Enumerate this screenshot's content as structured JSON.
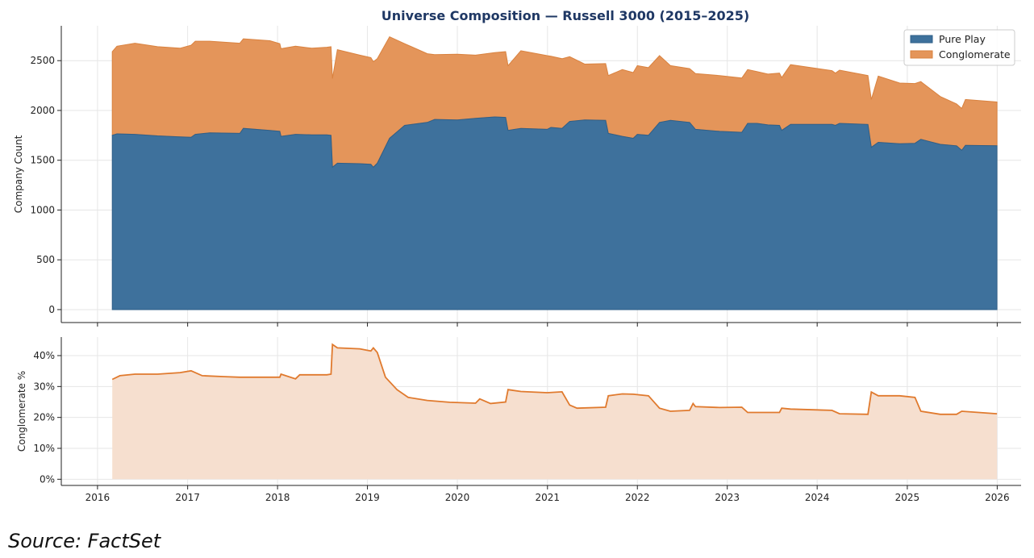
{
  "chart_data": [
    {
      "type": "area",
      "stacked": true,
      "title": "Universe Composition — Russell 3000  (2015–2025)",
      "xlabel": "",
      "ylabel": "Company Count",
      "ylim": [
        -130,
        2850
      ],
      "yticks": [
        0,
        500,
        1000,
        1500,
        2000,
        2500
      ],
      "grid": true,
      "legend": "top-right",
      "series": [
        {
          "name": "Pure Play",
          "color": "#3e719c",
          "points": [
            [
              "2016-03-01",
              1750
            ],
            [
              "2016-03-20",
              1765
            ],
            [
              "2016-06-01",
              1760
            ],
            [
              "2016-09-01",
              1745
            ],
            [
              "2016-12-01",
              1735
            ],
            [
              "2017-01-15",
              1730
            ],
            [
              "2017-02-01",
              1760
            ],
            [
              "2017-04-01",
              1775
            ],
            [
              "2017-08-01",
              1770
            ],
            [
              "2017-08-15",
              1820
            ],
            [
              "2017-12-01",
              1800
            ],
            [
              "2018-01-10",
              1790
            ],
            [
              "2018-01-15",
              1740
            ],
            [
              "2018-03-15",
              1760
            ],
            [
              "2018-05-20",
              1755
            ],
            [
              "2018-07-20",
              1755
            ],
            [
              "2018-08-06",
              1750
            ],
            [
              "2018-08-12",
              1430
            ],
            [
              "2018-09-01",
              1470
            ],
            [
              "2018-12-01",
              1465
            ],
            [
              "2019-01-15",
              1460
            ],
            [
              "2019-01-25",
              1430
            ],
            [
              "2019-02-10",
              1470
            ],
            [
              "2019-04-01",
              1720
            ],
            [
              "2019-06-01",
              1850
            ],
            [
              "2019-09-01",
              1880
            ],
            [
              "2019-10-01",
              1910
            ],
            [
              "2020-01-01",
              1905
            ],
            [
              "2020-03-15",
              1920
            ],
            [
              "2020-06-01",
              1935
            ],
            [
              "2020-07-15",
              1930
            ],
            [
              "2020-07-25",
              1800
            ],
            [
              "2020-09-15",
              1820
            ],
            [
              "2020-12-31",
              1810
            ],
            [
              "2021-01-15",
              1830
            ],
            [
              "2021-03-01",
              1820
            ],
            [
              "2021-04-01",
              1890
            ],
            [
              "2021-06-01",
              1905
            ],
            [
              "2021-08-25",
              1900
            ],
            [
              "2021-09-05",
              1770
            ],
            [
              "2021-11-01",
              1740
            ],
            [
              "2021-12-15",
              1720
            ],
            [
              "2022-01-01",
              1760
            ],
            [
              "2022-02-15",
              1750
            ],
            [
              "2022-04-01",
              1880
            ],
            [
              "2022-05-15",
              1900
            ],
            [
              "2022-08-01",
              1880
            ],
            [
              "2022-08-25",
              1810
            ],
            [
              "2022-12-01",
              1790
            ],
            [
              "2023-03-01",
              1780
            ],
            [
              "2023-03-25",
              1870
            ],
            [
              "2023-05-01",
              1870
            ],
            [
              "2023-06-15",
              1855
            ],
            [
              "2023-08-01",
              1850
            ],
            [
              "2023-08-10",
              1800
            ],
            [
              "2023-09-15",
              1860
            ],
            [
              "2024-03-01",
              1860
            ],
            [
              "2024-03-15",
              1850
            ],
            [
              "2024-04-01",
              1870
            ],
            [
              "2024-07-25",
              1860
            ],
            [
              "2024-08-08",
              1630
            ],
            [
              "2024-09-05",
              1680
            ],
            [
              "2024-12-01",
              1665
            ],
            [
              "2025-02-01",
              1670
            ],
            [
              "2025-02-25",
              1710
            ],
            [
              "2025-05-15",
              1660
            ],
            [
              "2025-07-20",
              1645
            ],
            [
              "2025-08-10",
              1600
            ],
            [
              "2025-08-25",
              1650
            ],
            [
              "2025-12-31",
              1645
            ]
          ]
        },
        {
          "name": "Conglomerate",
          "color": "#e4955a",
          "points": [
            [
              "2016-03-01",
              840
            ],
            [
              "2016-03-20",
              880
            ],
            [
              "2016-04-01",
              915
            ],
            [
              "2016-06-01",
              895
            ],
            [
              "2016-09-01",
              890
            ],
            [
              "2016-12-01",
              925
            ],
            [
              "2017-01-15",
              935
            ],
            [
              "2017-02-01",
              920
            ],
            [
              "2017-04-01",
              905
            ],
            [
              "2017-08-01",
              900
            ],
            [
              "2017-08-15",
              900
            ],
            [
              "2017-12-01",
              880
            ],
            [
              "2018-01-10",
              880
            ],
            [
              "2018-01-15",
              885
            ],
            [
              "2018-03-15",
              870
            ],
            [
              "2018-05-20",
              880
            ],
            [
              "2018-07-20",
              890
            ],
            [
              "2018-08-06",
              890
            ],
            [
              "2018-08-12",
              1140
            ],
            [
              "2018-09-01",
              1090
            ],
            [
              "2018-12-01",
              1070
            ],
            [
              "2019-01-15",
              1060
            ],
            [
              "2019-01-25",
              1050
            ],
            [
              "2019-02-10",
              1020
            ],
            [
              "2019-04-01",
              820
            ],
            [
              "2019-06-01",
              690
            ],
            [
              "2019-09-01",
              650
            ],
            [
              "2019-10-01",
              660
            ],
            [
              "2020-01-01",
              635
            ],
            [
              "2020-03-15",
              645
            ],
            [
              "2020-06-01",
              660
            ],
            [
              "2020-07-15",
              650
            ],
            [
              "2020-07-25",
              780
            ],
            [
              "2020-09-15",
              740
            ],
            [
              "2020-12-31",
              715
            ],
            [
              "2021-01-15",
              700
            ],
            [
              "2021-03-01",
              650
            ],
            [
              "2021-04-01",
              560
            ],
            [
              "2021-06-01",
              570
            ],
            [
              "2021-08-25",
              580
            ],
            [
              "2021-09-05",
              670
            ],
            [
              "2021-11-01",
              660
            ],
            [
              "2021-12-15",
              690
            ],
            [
              "2022-01-01",
              680
            ],
            [
              "2022-02-15",
              670
            ],
            [
              "2022-04-01",
              550
            ],
            [
              "2022-05-15",
              540
            ],
            [
              "2022-08-01",
              560
            ],
            [
              "2022-08-25",
              560
            ],
            [
              "2022-12-01",
              545
            ],
            [
              "2023-03-01",
              540
            ],
            [
              "2023-03-25",
              520
            ],
            [
              "2023-05-01",
              510
            ],
            [
              "2023-06-15",
              525
            ],
            [
              "2023-08-01",
              530
            ],
            [
              "2023-08-10",
              600
            ],
            [
              "2023-09-15",
              540
            ],
            [
              "2024-03-01",
              525
            ],
            [
              "2024-03-15",
              535
            ],
            [
              "2024-04-01",
              490
            ],
            [
              "2024-07-25",
              480
            ],
            [
              "2024-08-08",
              665
            ],
            [
              "2024-09-05",
              610
            ],
            [
              "2024-12-01",
              600
            ],
            [
              "2025-02-01",
              580
            ],
            [
              "2025-02-25",
              480
            ],
            [
              "2025-05-15",
              420
            ],
            [
              "2025-07-20",
              420
            ],
            [
              "2025-08-10",
              460
            ],
            [
              "2025-08-25",
              440
            ],
            [
              "2025-12-31",
              430
            ]
          ]
        }
      ]
    },
    {
      "type": "area",
      "title": "",
      "xlabel": "",
      "ylabel": "Conglomerate %",
      "ylim": [
        -2,
        46
      ],
      "yticks": [
        0,
        10,
        20,
        30,
        40
      ],
      "ytick_labels": [
        "0%",
        "10%",
        "20%",
        "30%",
        "40%"
      ],
      "grid": true,
      "series": [
        {
          "color": "#e07a2e",
          "fill": "#f6dfcf",
          "points": [
            [
              "2016-03-01",
              32.3
            ],
            [
              "2016-04-01",
              33.5
            ],
            [
              "2016-06-01",
              34.0
            ],
            [
              "2016-09-01",
              34.0
            ],
            [
              "2016-12-01",
              34.5
            ],
            [
              "2017-01-15",
              35.1
            ],
            [
              "2017-03-01",
              33.5
            ],
            [
              "2017-06-01",
              33.2
            ],
            [
              "2017-08-01",
              33.0
            ],
            [
              "2017-10-01",
              33.0
            ],
            [
              "2018-01-10",
              33.0
            ],
            [
              "2018-01-15",
              34.0
            ],
            [
              "2018-03-15",
              32.5
            ],
            [
              "2018-04-01",
              33.8
            ],
            [
              "2018-07-20",
              33.8
            ],
            [
              "2018-08-06",
              34.0
            ],
            [
              "2018-08-12",
              43.6
            ],
            [
              "2018-09-01",
              42.5
            ],
            [
              "2018-12-01",
              42.2
            ],
            [
              "2019-01-15",
              41.5
            ],
            [
              "2019-01-25",
              42.5
            ],
            [
              "2019-02-10",
              41.0
            ],
            [
              "2019-03-15",
              33.0
            ],
            [
              "2019-05-01",
              29.0
            ],
            [
              "2019-06-15",
              26.5
            ],
            [
              "2019-09-01",
              25.5
            ],
            [
              "2019-12-01",
              24.9
            ],
            [
              "2020-03-15",
              24.6
            ],
            [
              "2020-04-01",
              26.0
            ],
            [
              "2020-05-15",
              24.5
            ],
            [
              "2020-07-15",
              25.0
            ],
            [
              "2020-07-25",
              29.0
            ],
            [
              "2020-09-15",
              28.4
            ],
            [
              "2020-12-31",
              28.0
            ],
            [
              "2021-03-01",
              28.3
            ],
            [
              "2021-04-01",
              24.0
            ],
            [
              "2021-05-01",
              23.0
            ],
            [
              "2021-08-25",
              23.3
            ],
            [
              "2021-09-05",
              27.0
            ],
            [
              "2021-11-01",
              27.6
            ],
            [
              "2021-12-15",
              27.5
            ],
            [
              "2022-02-15",
              27.0
            ],
            [
              "2022-04-01",
              23.0
            ],
            [
              "2022-05-15",
              22.0
            ],
            [
              "2022-08-01",
              22.3
            ],
            [
              "2022-08-15",
              24.5
            ],
            [
              "2022-08-25",
              23.5
            ],
            [
              "2022-12-01",
              23.2
            ],
            [
              "2023-03-01",
              23.3
            ],
            [
              "2023-03-25",
              21.6
            ],
            [
              "2023-06-15",
              21.6
            ],
            [
              "2023-08-01",
              21.6
            ],
            [
              "2023-08-10",
              23.0
            ],
            [
              "2023-09-15",
              22.7
            ],
            [
              "2024-03-01",
              22.3
            ],
            [
              "2024-04-01",
              21.2
            ],
            [
              "2024-07-25",
              21.0
            ],
            [
              "2024-08-08",
              28.2
            ],
            [
              "2024-09-05",
              27.0
            ],
            [
              "2024-12-01",
              27.0
            ],
            [
              "2025-02-01",
              26.5
            ],
            [
              "2025-02-25",
              22.0
            ],
            [
              "2025-05-15",
              21.0
            ],
            [
              "2025-07-20",
              21.0
            ],
            [
              "2025-08-10",
              22.0
            ],
            [
              "2025-12-31",
              21.2
            ]
          ]
        }
      ],
      "xticks": [
        "2016",
        "2017",
        "2018",
        "2019",
        "2020",
        "2021",
        "2022",
        "2023",
        "2024",
        "2025",
        "2026"
      ]
    }
  ],
  "source_text": "Source: FactSet"
}
